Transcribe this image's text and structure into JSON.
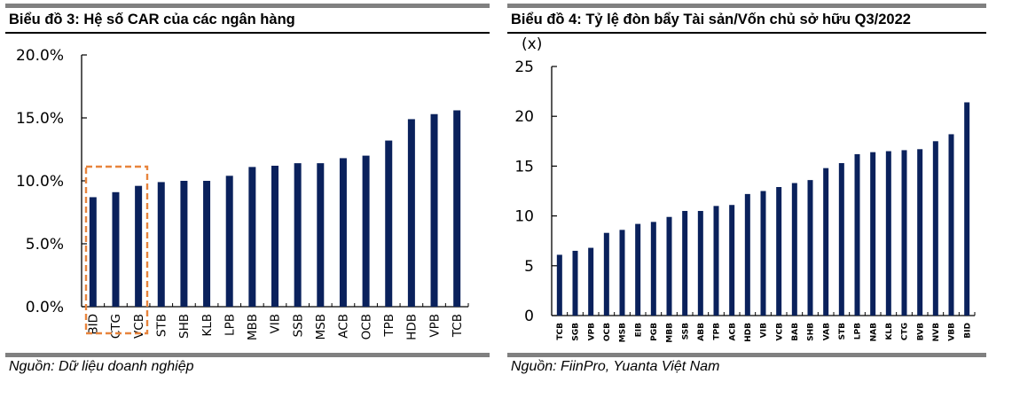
{
  "left_chart": {
    "title": "Biểu đồ 3: Hệ số CAR của các ngân hàng",
    "source": "Nguồn: Dữ liệu doanh nghiệp",
    "y_ticks": [
      "0.0%",
      "5.0%",
      "10.0%",
      "15.0%",
      "20.0%"
    ],
    "highlight_note": "BID, CTG, VCB highlighted with orange dashed box"
  },
  "right_chart": {
    "title": "Biểu đồ 4: Tỷ lệ đòn bẩy Tài sản/Vốn chủ sở hữu Q3/2022",
    "unit_label": "(x)",
    "source": "Nguồn: FiinPro, Yuanta Việt Nam",
    "y_ticks": [
      "0",
      "5",
      "10",
      "15",
      "20",
      "25"
    ]
  },
  "colors": {
    "bar": "#0a215c",
    "highlight_box": "#e8843c",
    "rule_gray": "#808080"
  },
  "chart_data": [
    {
      "type": "bar",
      "title": "Biểu đồ 3: Hệ số CAR của các ngân hàng",
      "xlabel": "",
      "ylabel": "",
      "ylim": [
        0,
        20
      ],
      "y_format": "percent",
      "grid": false,
      "legend": null,
      "categories": [
        "BID",
        "CTG",
        "VCB",
        "STB",
        "SHB",
        "KLB",
        "LPB",
        "MBB",
        "VIB",
        "SSB",
        "MSB",
        "ACB",
        "OCB",
        "TPB",
        "HDB",
        "VPB",
        "TCB"
      ],
      "values": [
        8.7,
        9.1,
        9.6,
        9.9,
        10.0,
        10.0,
        10.4,
        11.1,
        11.2,
        11.4,
        11.4,
        11.8,
        12.0,
        13.2,
        14.9,
        15.3,
        15.6
      ],
      "annotations": [
        "Dashed orange box around BID, CTG, VCB"
      ]
    },
    {
      "type": "bar",
      "title": "Biểu đồ 4: Tỷ lệ đòn bẩy Tài sản/Vốn chủ sở hữu Q3/2022",
      "xlabel": "",
      "ylabel": "(x)",
      "ylim": [
        0,
        25
      ],
      "grid": false,
      "legend": null,
      "categories": [
        "TCB",
        "SGB",
        "VPB",
        "OCB",
        "MSB",
        "EIB",
        "PGB",
        "MBB",
        "SSB",
        "ABB",
        "TPB",
        "ACB",
        "HDB",
        "VIB",
        "VCB",
        "BAB",
        "SHB",
        "VAB",
        "STB",
        "LPB",
        "NAB",
        "KLB",
        "CTG",
        "BVB",
        "NVB",
        "VBB",
        "BID"
      ],
      "values": [
        6.1,
        6.5,
        6.8,
        8.3,
        8.6,
        9.2,
        9.4,
        9.9,
        10.5,
        10.5,
        11.0,
        11.1,
        12.2,
        12.5,
        12.9,
        13.3,
        13.6,
        14.8,
        15.3,
        16.2,
        16.4,
        16.5,
        16.6,
        16.7,
        17.5,
        18.2,
        21.4
      ]
    }
  ]
}
